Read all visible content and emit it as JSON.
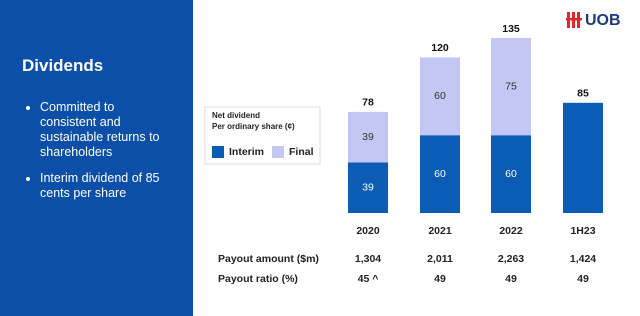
{
  "slide": {
    "title": "Dividends",
    "bullets": [
      "Committed to consistent and sustainable returns to shareholders",
      "Interim dividend of 85 cents per share"
    ],
    "logo": "UOB"
  },
  "chart_data": {
    "type": "bar",
    "stacked": true,
    "categories": [
      "2020",
      "2021",
      "2022",
      "1H23"
    ],
    "legend_title": [
      "Net dividend",
      "Per ordinary share (¢)"
    ],
    "series": [
      {
        "name": "Interim",
        "color": "#0b5cb5",
        "values": [
          39,
          60,
          60,
          85
        ]
      },
      {
        "name": "Final",
        "color": "#c4c6f4",
        "values": [
          39,
          60,
          75,
          null
        ]
      }
    ],
    "totals": [
      78,
      120,
      135,
      85
    ]
  },
  "table": {
    "rows": [
      {
        "label": "Payout amount ($m)",
        "values": [
          "1,304",
          "2,011",
          "2,263",
          "1,424"
        ]
      },
      {
        "label": "Payout ratio (%)",
        "values": [
          "45 ^",
          "49",
          "49",
          "49"
        ]
      }
    ]
  }
}
